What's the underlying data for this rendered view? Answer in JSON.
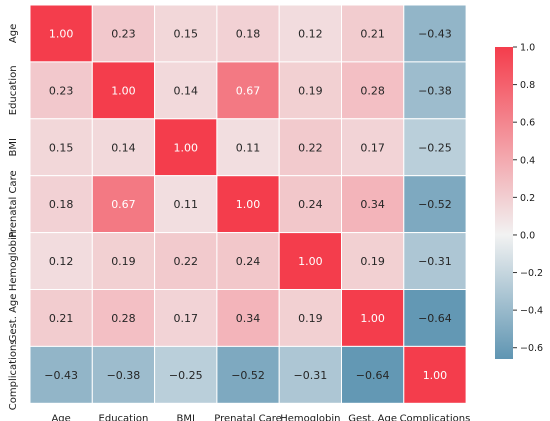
{
  "chart_data": {
    "type": "heatmap",
    "title": "",
    "xlabel": "",
    "ylabel": "",
    "row_labels": [
      "Age",
      "Education",
      "BMI",
      "Prenatal Care",
      "Hemoglobin",
      "Gest. Age",
      "Complications"
    ],
    "col_labels": [
      "Age",
      "Education",
      "BMI",
      "Prenatal Care",
      "Hemoglobin",
      "Gest. Age",
      "Complications"
    ],
    "values": [
      [
        1.0,
        0.23,
        0.15,
        0.18,
        0.12,
        0.21,
        -0.43
      ],
      [
        0.23,
        1.0,
        0.14,
        0.67,
        0.19,
        0.28,
        -0.38
      ],
      [
        0.15,
        0.14,
        1.0,
        0.11,
        0.22,
        0.17,
        -0.25
      ],
      [
        0.18,
        0.67,
        0.11,
        1.0,
        0.24,
        0.34,
        -0.52
      ],
      [
        0.12,
        0.19,
        0.22,
        0.24,
        1.0,
        0.19,
        -0.31
      ],
      [
        0.21,
        0.28,
        0.17,
        0.34,
        0.19,
        1.0,
        -0.64
      ],
      [
        -0.43,
        -0.38,
        -0.25,
        -0.52,
        -0.31,
        -0.64,
        1.0
      ]
    ],
    "cell_labels": [
      [
        "1.00",
        "0.23",
        "0.15",
        "0.18",
        "0.12",
        "0.21",
        "−0.43"
      ],
      [
        "0.23",
        "1.00",
        "0.14",
        "0.67",
        "0.19",
        "0.28",
        "−0.38"
      ],
      [
        "0.15",
        "0.14",
        "1.00",
        "0.11",
        "0.22",
        "0.17",
        "−0.25"
      ],
      [
        "0.18",
        "0.67",
        "0.11",
        "1.00",
        "0.24",
        "0.34",
        "−0.52"
      ],
      [
        "0.12",
        "0.19",
        "0.22",
        "0.24",
        "1.00",
        "0.19",
        "−0.31"
      ],
      [
        "0.21",
        "0.28",
        "0.17",
        "0.34",
        "0.19",
        "1.00",
        "−0.64"
      ],
      [
        "−0.43",
        "−0.38",
        "−0.25",
        "−0.52",
        "−0.31",
        "−0.64",
        "1.00"
      ]
    ],
    "colorbar": {
      "min": -0.66,
      "max": 1.0,
      "ticks": [
        1.0,
        0.8,
        0.6,
        0.4,
        0.2,
        0.0,
        -0.2,
        -0.4,
        -0.6
      ],
      "tick_labels": [
        "1.0",
        "0.8",
        "0.6",
        "0.4",
        "0.2",
        "0.0",
        "−0.2",
        "−0.4",
        "−0.6"
      ]
    },
    "colors": {
      "negative": "#5f95b2",
      "neutral": "#f2f2f2",
      "positive": "#f43d4c",
      "cell_border": "#ffffff"
    },
    "grid": false,
    "legend": "colorbar-right"
  }
}
